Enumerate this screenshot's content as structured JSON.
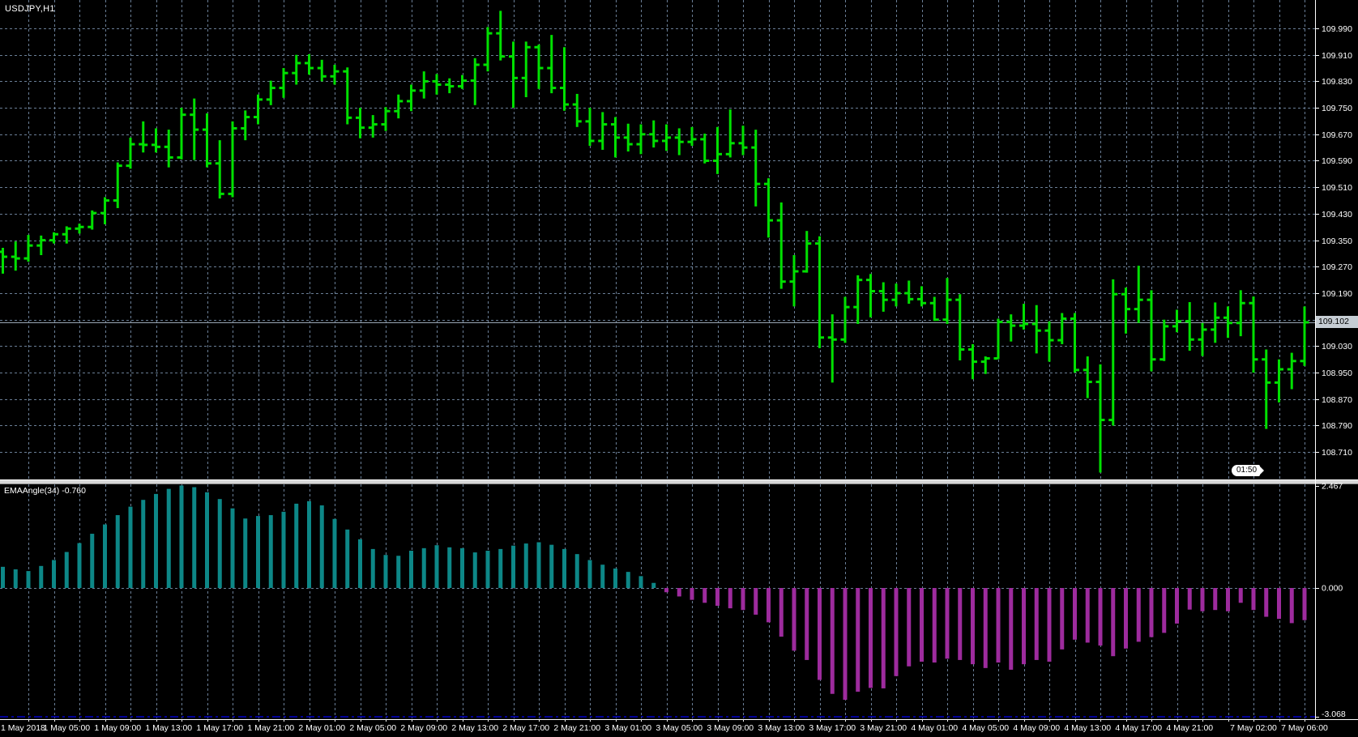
{
  "window": {
    "title": "USDJPY,H1"
  },
  "indicator": {
    "name": "EMAAngle(34)",
    "current_value": "-0.760",
    "label": "EMAAngle(34) -0.760"
  },
  "countdown_tag": "01:50",
  "colors": {
    "background": "#000000",
    "grid": "#6A7E96",
    "bar_green": "#00E000",
    "histogram_positive": "#0D8787",
    "histogram_negative": "#9D2B9D",
    "price_line": "#9AA7B4",
    "price_tag_bg": "#C6CDD4",
    "level_line_blue": "#0000F0",
    "divider": "#D6D6D6",
    "border": "#FFFFFF",
    "axis_text": "#FFFFFF"
  },
  "chart_data": [
    {
      "type": "ohlc-bars",
      "title": "USDJPY H1 price panel",
      "bar_color": "#00E000",
      "current_price": "109.102",
      "ylim": [
        108.628,
        110.076
      ],
      "y_tick_labels": [
        "109.990",
        "109.910",
        "109.830",
        "109.750",
        "109.670",
        "109.590",
        "109.510",
        "109.430",
        "109.350",
        "109.270",
        "109.190",
        "109.110",
        "109.030",
        "108.950",
        "108.870",
        "108.790",
        "108.710"
      ],
      "x_tick_labels": [
        {
          "label": "1 May 2018",
          "bar": 0
        },
        {
          "label": "1 May 05:00",
          "bar": 5
        },
        {
          "label": "1 May 09:00",
          "bar": 9
        },
        {
          "label": "1 May 13:00",
          "bar": 13
        },
        {
          "label": "1 May 17:00",
          "bar": 17
        },
        {
          "label": "1 May 21:00",
          "bar": 21
        },
        {
          "label": "2 May 01:00",
          "bar": 25
        },
        {
          "label": "2 May 05:00",
          "bar": 29
        },
        {
          "label": "2 May 09:00",
          "bar": 33
        },
        {
          "label": "2 May 13:00",
          "bar": 37
        },
        {
          "label": "2 May 17:00",
          "bar": 41
        },
        {
          "label": "2 May 21:00",
          "bar": 45
        },
        {
          "label": "3 May 01:00",
          "bar": 49
        },
        {
          "label": "3 May 05:00",
          "bar": 53
        },
        {
          "label": "3 May 09:00",
          "bar": 57
        },
        {
          "label": "3 May 13:00",
          "bar": 61
        },
        {
          "label": "3 May 17:00",
          "bar": 65
        },
        {
          "label": "3 May 21:00",
          "bar": 69
        },
        {
          "label": "4 May 01:00",
          "bar": 73
        },
        {
          "label": "4 May 05:00",
          "bar": 77
        },
        {
          "label": "4 May 09:00",
          "bar": 81
        },
        {
          "label": "4 May 13:00",
          "bar": 85
        },
        {
          "label": "4 May 17:00",
          "bar": 89
        },
        {
          "label": "4 May 21:00",
          "bar": 93
        },
        {
          "label": "7 May 02:00",
          "bar": 98
        },
        {
          "label": "7 May 06:00",
          "bar": 102
        }
      ],
      "bars": [
        [
          109.315,
          109.327,
          109.249,
          109.3
        ],
        [
          109.3,
          109.346,
          109.258,
          109.295
        ],
        [
          109.295,
          109.366,
          109.285,
          109.334
        ],
        [
          109.334,
          109.364,
          109.305,
          109.35
        ],
        [
          109.35,
          109.374,
          109.34,
          109.368
        ],
        [
          109.368,
          109.392,
          109.34,
          109.385
        ],
        [
          109.385,
          109.4,
          109.37,
          109.39
        ],
        [
          109.39,
          109.44,
          109.382,
          109.432
        ],
        [
          109.432,
          109.48,
          109.398,
          109.47
        ],
        [
          109.47,
          109.585,
          109.447,
          109.575
        ],
        [
          109.575,
          109.66,
          109.566,
          109.64
        ],
        [
          109.64,
          109.709,
          109.615,
          109.638
        ],
        [
          109.638,
          109.688,
          109.615,
          109.632
        ],
        [
          109.632,
          109.684,
          109.57,
          109.6
        ],
        [
          109.6,
          109.75,
          109.594,
          109.729
        ],
        [
          109.729,
          109.778,
          109.592,
          109.684
        ],
        [
          109.684,
          109.733,
          109.57,
          109.582
        ],
        [
          109.582,
          109.652,
          109.476,
          109.49
        ],
        [
          109.49,
          109.709,
          109.48,
          109.688
        ],
        [
          109.688,
          109.742,
          109.652,
          109.722
        ],
        [
          109.722,
          109.79,
          109.7,
          109.775
        ],
        [
          109.775,
          109.832,
          109.758,
          109.81
        ],
        [
          109.81,
          109.87,
          109.78,
          109.855
        ],
        [
          109.855,
          109.91,
          109.82,
          109.885
        ],
        [
          109.885,
          109.912,
          109.85,
          109.87
        ],
        [
          109.87,
          109.895,
          109.83,
          109.845
        ],
        [
          109.845,
          109.88,
          109.82,
          109.86
        ],
        [
          109.86,
          109.872,
          109.7,
          109.72
        ],
        [
          109.72,
          109.75,
          109.658,
          109.69
        ],
        [
          109.69,
          109.728,
          109.66,
          109.7
        ],
        [
          109.7,
          109.752,
          109.68,
          109.74
        ],
        [
          109.74,
          109.79,
          109.718,
          109.77
        ],
        [
          109.77,
          109.82,
          109.74,
          109.802
        ],
        [
          109.802,
          109.86,
          109.778,
          109.83
        ],
        [
          109.83,
          109.852,
          109.79,
          109.82
        ],
        [
          109.82,
          109.839,
          109.794,
          109.815
        ],
        [
          109.815,
          109.849,
          109.807,
          109.832
        ],
        [
          109.832,
          109.9,
          109.758,
          109.88
        ],
        [
          109.88,
          109.994,
          109.86,
          109.975
        ],
        [
          109.975,
          110.043,
          109.893,
          109.905
        ],
        [
          109.905,
          109.95,
          109.75,
          109.84
        ],
        [
          109.84,
          109.95,
          109.782,
          109.933
        ],
        [
          109.933,
          109.941,
          109.807,
          109.87
        ],
        [
          109.87,
          109.97,
          109.794,
          109.81
        ],
        [
          109.81,
          109.933,
          109.741,
          109.76
        ],
        [
          109.76,
          109.792,
          109.692,
          109.709
        ],
        [
          109.709,
          109.75,
          109.635,
          109.65
        ],
        [
          109.65,
          109.737,
          109.623,
          109.7
        ],
        [
          109.7,
          109.722,
          109.6,
          109.66
        ],
        [
          109.66,
          109.702,
          109.618,
          109.64
        ],
        [
          109.64,
          109.7,
          109.61,
          109.67
        ],
        [
          109.67,
          109.712,
          109.63,
          109.65
        ],
        [
          109.65,
          109.7,
          109.62,
          109.66
        ],
        [
          109.66,
          109.688,
          109.607,
          109.647
        ],
        [
          109.647,
          109.692,
          109.635,
          109.655
        ],
        [
          109.655,
          109.672,
          109.582,
          109.59
        ],
        [
          109.59,
          109.692,
          109.55,
          109.61
        ],
        [
          109.61,
          109.745,
          109.6,
          109.643
        ],
        [
          109.643,
          109.696,
          109.607,
          109.63
        ],
        [
          109.63,
          109.684,
          109.452,
          109.52
        ],
        [
          109.52,
          109.537,
          109.358,
          109.41
        ],
        [
          109.41,
          109.464,
          109.203,
          109.225
        ],
        [
          109.225,
          109.305,
          109.15,
          109.256
        ],
        [
          109.256,
          109.378,
          109.252,
          109.34
        ],
        [
          109.34,
          109.362,
          109.024,
          109.056
        ],
        [
          109.056,
          109.126,
          108.92,
          109.05
        ],
        [
          109.05,
          109.179,
          109.04,
          109.148
        ],
        [
          109.148,
          109.244,
          109.097,
          109.23
        ],
        [
          109.23,
          109.248,
          109.117,
          109.196
        ],
        [
          109.196,
          109.223,
          109.134,
          109.17
        ],
        [
          109.17,
          109.219,
          109.15,
          109.19
        ],
        [
          109.19,
          109.228,
          109.158,
          109.172
        ],
        [
          109.172,
          109.211,
          109.15,
          109.16
        ],
        [
          109.16,
          109.179,
          109.106,
          109.11
        ],
        [
          109.11,
          109.236,
          109.097,
          109.17
        ],
        [
          109.17,
          109.187,
          108.987,
          109.02
        ],
        [
          109.02,
          109.036,
          108.93,
          108.983
        ],
        [
          108.983,
          108.999,
          108.946,
          108.993
        ],
        [
          108.993,
          109.113,
          108.991,
          109.103
        ],
        [
          109.103,
          109.126,
          109.044,
          109.092
        ],
        [
          109.092,
          109.158,
          109.08,
          109.097
        ],
        [
          109.097,
          109.154,
          109.008,
          109.077
        ],
        [
          109.077,
          109.105,
          108.983,
          109.048
        ],
        [
          109.048,
          109.13,
          109.036,
          109.113
        ],
        [
          109.113,
          109.13,
          108.95,
          108.958
        ],
        [
          108.958,
          108.999,
          108.873,
          108.922
        ],
        [
          108.922,
          108.975,
          108.648,
          108.807
        ],
        [
          108.807,
          109.232,
          108.79,
          109.187
        ],
        [
          109.187,
          109.207,
          109.068,
          109.142
        ],
        [
          109.142,
          109.273,
          109.1,
          109.17
        ],
        [
          109.17,
          109.199,
          108.954,
          108.99
        ],
        [
          108.99,
          109.11,
          108.985,
          109.09
        ],
        [
          109.09,
          109.14,
          109.072,
          109.105
        ],
        [
          109.105,
          109.163,
          109.016,
          109.05
        ],
        [
          109.05,
          109.1,
          109.0,
          109.08
        ],
        [
          109.08,
          109.162,
          109.04,
          109.116
        ],
        [
          109.116,
          109.15,
          109.055,
          109.1
        ],
        [
          109.1,
          109.199,
          109.06,
          109.16
        ],
        [
          109.16,
          109.18,
          108.95,
          108.99
        ],
        [
          108.99,
          109.02,
          108.78,
          108.92
        ],
        [
          108.92,
          108.99,
          108.86,
          108.96
        ],
        [
          108.96,
          109.01,
          108.9,
          108.985
        ],
        [
          108.985,
          109.15,
          108.97,
          109.102
        ]
      ]
    },
    {
      "type": "bar",
      "title": "EMAAngle(34) histogram",
      "positive_color": "#0D8787",
      "negative_color": "#9D2B9D",
      "ylim": [
        -3.068,
        2.467
      ],
      "zero_line": 0.0,
      "level_line": -3.04,
      "y_tick_labels": [
        "2.467",
        "0.000",
        "-3.068"
      ],
      "values": [
        0.5,
        0.44,
        0.4,
        0.52,
        0.66,
        0.85,
        1.06,
        1.28,
        1.5,
        1.72,
        1.92,
        2.08,
        2.22,
        2.34,
        2.42,
        2.38,
        2.26,
        2.1,
        1.88,
        1.64,
        1.7,
        1.72,
        1.8,
        1.99,
        2.05,
        1.95,
        1.63,
        1.38,
        1.15,
        0.92,
        0.78,
        0.76,
        0.88,
        0.94,
        1.01,
        0.96,
        0.94,
        0.84,
        0.88,
        0.92,
        1.0,
        1.05,
        1.08,
        1.02,
        0.92,
        0.8,
        0.66,
        0.55,
        0.46,
        0.38,
        0.28,
        0.12,
        -0.1,
        -0.2,
        -0.28,
        -0.35,
        -0.42,
        -0.48,
        -0.52,
        -0.63,
        -0.81,
        -1.15,
        -1.48,
        -1.7,
        -2.17,
        -2.5,
        -2.64,
        -2.45,
        -2.36,
        -2.37,
        -2.08,
        -1.85,
        -1.74,
        -1.76,
        -1.67,
        -1.7,
        -1.8,
        -1.89,
        -1.76,
        -1.93,
        -1.8,
        -1.7,
        -1.74,
        -1.45,
        -1.22,
        -1.29,
        -1.36,
        -1.61,
        -1.43,
        -1.27,
        -1.16,
        -1.06,
        -0.84,
        -0.51,
        -0.55,
        -0.52,
        -0.55,
        -0.35,
        -0.52,
        -0.68,
        -0.73,
        -0.83,
        -0.76
      ]
    }
  ]
}
